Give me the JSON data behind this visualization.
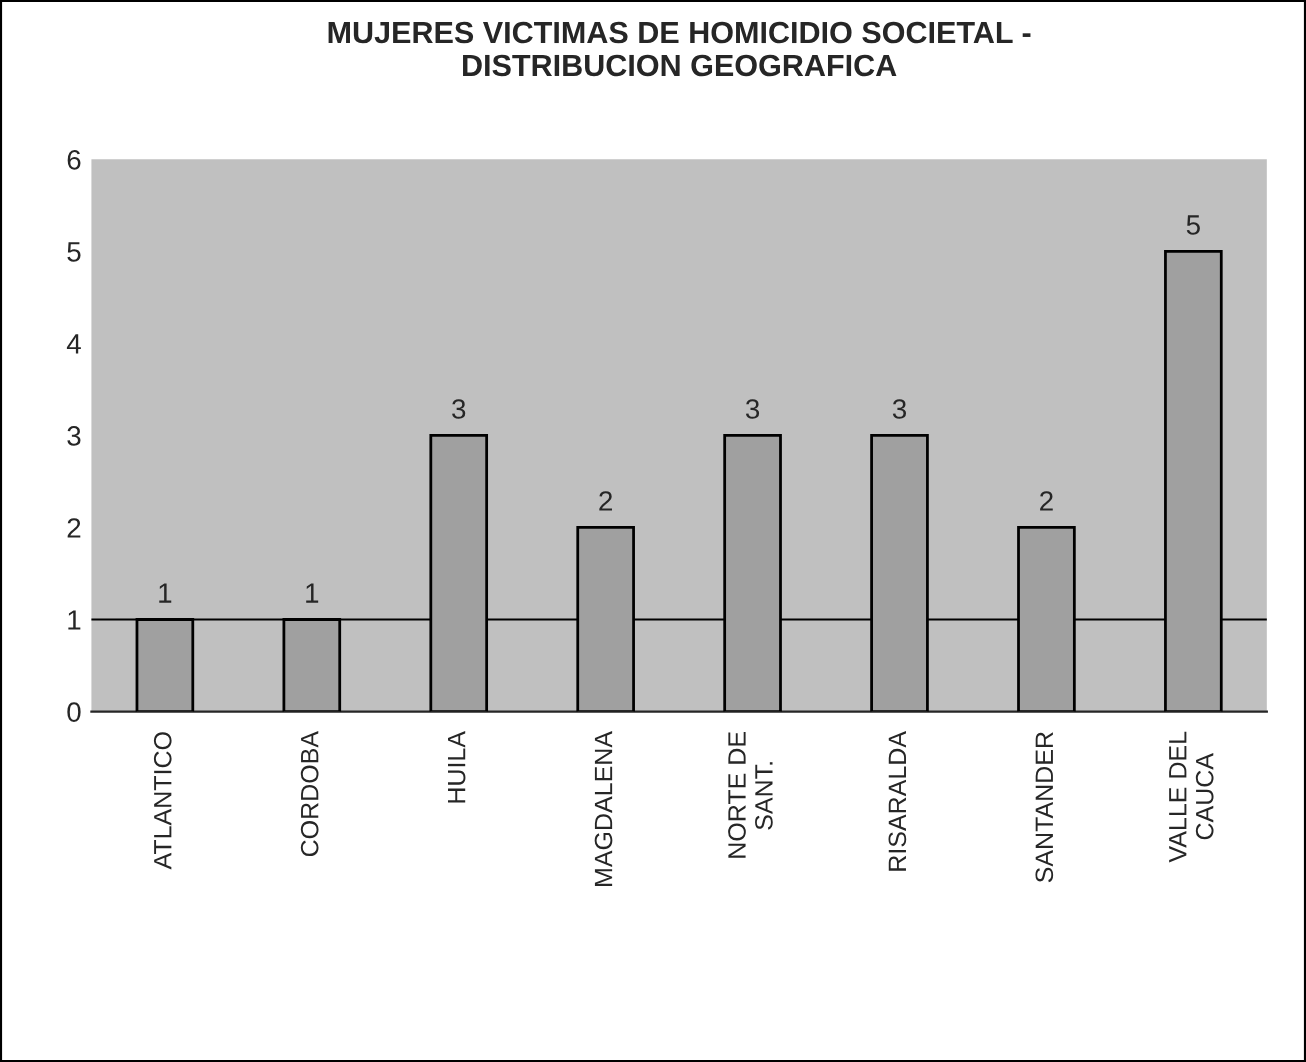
{
  "chart_data": {
    "type": "bar",
    "title": "MUJERES VICTIMAS DE HOMICIDIO SOCIETAL -\nDISTRIBUCION GEOGRAFICA",
    "categories": [
      "ATLANTICO",
      "CORDOBA",
      "HUILA",
      "MAGDALENA",
      "NORTE DE\nSANT.",
      "RISARALDA",
      "SANTANDER",
      "VALLE DEL\nCAUCA"
    ],
    "values": [
      1,
      1,
      3,
      2,
      3,
      3,
      2,
      5
    ],
    "color": "#a0a0a0",
    "ylim": [
      0,
      6
    ],
    "yticks": [
      0,
      1,
      2,
      3,
      4,
      5,
      6
    ],
    "grid": false,
    "data_labels": true,
    "ref_lines": [
      {
        "axis": "y",
        "value": 1,
        "color": "#000000"
      }
    ]
  }
}
